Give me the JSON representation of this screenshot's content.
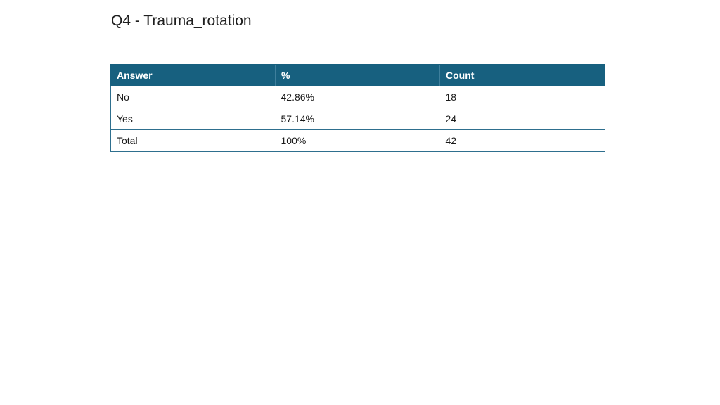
{
  "title": "Q4 - Trauma_rotation",
  "table": {
    "headers": [
      "Answer",
      "%",
      "Count"
    ],
    "rows": [
      [
        "No",
        "42.86%",
        "18"
      ],
      [
        "Yes",
        "57.14%",
        "24"
      ],
      [
        "Total",
        "100%",
        "42"
      ]
    ]
  },
  "colors": {
    "header_background": "#17607f",
    "header_text": "#ffffff",
    "border": "#2e6f8e"
  }
}
